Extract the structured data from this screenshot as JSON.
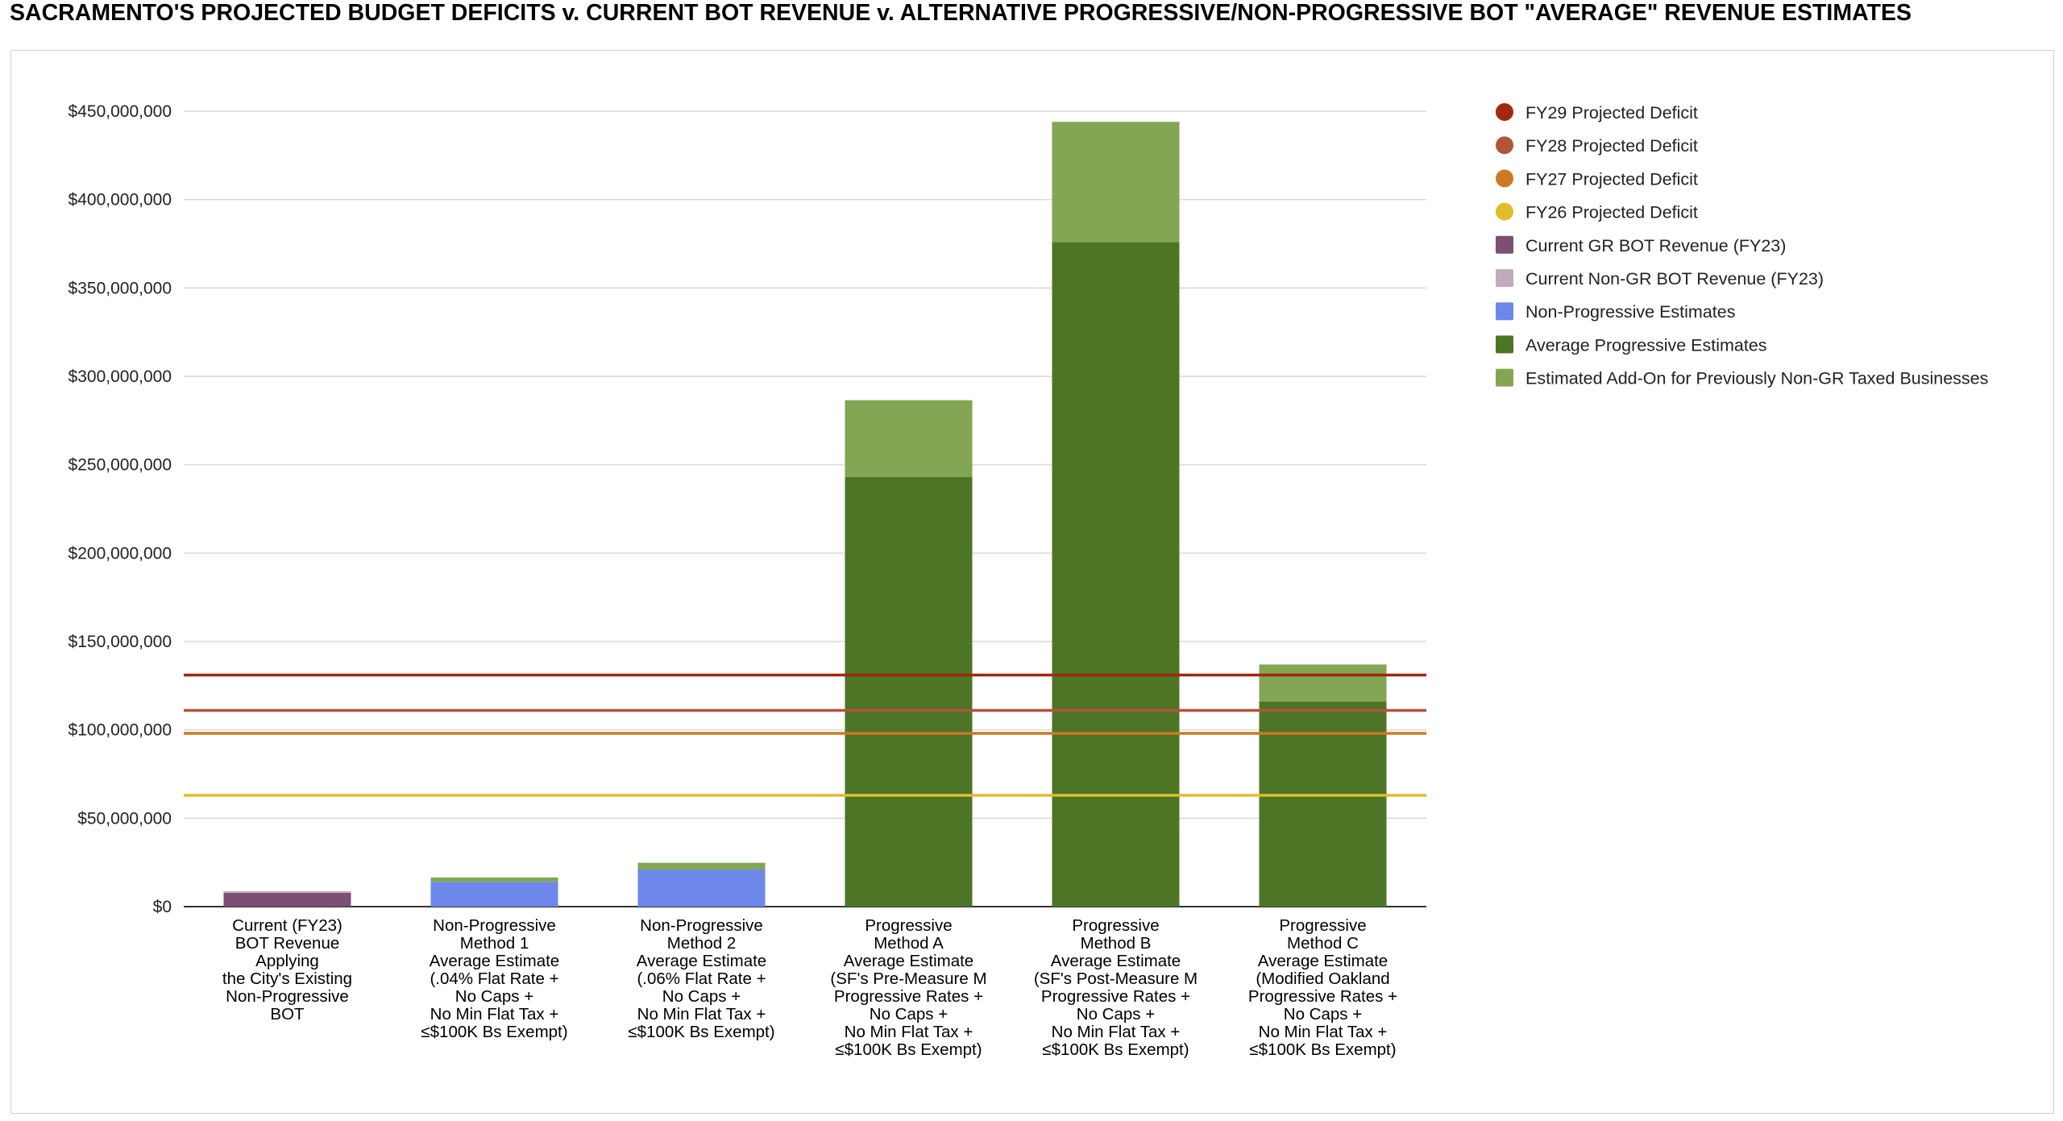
{
  "title": "SACRAMENTO'S PROJECTED BUDGET DEFICITS v. CURRENT BOT REVENUE v. ALTERNATIVE PROGRESSIVE/NON-PROGRESSIVE BOT \"AVERAGE\" REVENUE ESTIMATES",
  "chart_data": {
    "type": "bar",
    "stacked": true,
    "title": "SACRAMENTO'S PROJECTED BUDGET DEFICITS v. CURRENT BOT REVENUE v. ALTERNATIVE PROGRESSIVE/NON-PROGRESSIVE BOT \"AVERAGE\" REVENUE ESTIMATES",
    "xlabel": "",
    "ylabel": "",
    "ylim": [
      0,
      450000000
    ],
    "yticks": [
      0,
      50000000,
      100000000,
      150000000,
      200000000,
      250000000,
      300000000,
      350000000,
      400000000,
      450000000
    ],
    "ytick_labels": [
      "$0",
      "$50,000,000",
      "$100,000,000",
      "$150,000,000",
      "$200,000,000",
      "$250,000,000",
      "$300,000,000",
      "$350,000,000",
      "$400,000,000",
      "$450,000,000"
    ],
    "grid": true,
    "legend_position": "right",
    "categories": [
      [
        "Current (FY23)",
        "BOT Revenue",
        "Applying",
        "the City's Existing",
        "Non-Progressive",
        "BOT"
      ],
      [
        "Non-Progressive",
        "Method 1",
        "Average Estimate",
        "(.04% Flat Rate +",
        "No Caps +",
        "No Min Flat Tax +",
        "≤$100K Bs Exempt)"
      ],
      [
        "Non-Progressive",
        "Method 2",
        "Average Estimate",
        "(.06% Flat Rate +",
        "No Caps +",
        "No Min Flat Tax +",
        "≤$100K Bs Exempt)"
      ],
      [
        "Progressive",
        "Method A",
        "Average Estimate",
        "(SF's Pre-Measure M",
        "Progressive Rates +",
        "No Caps +",
        "No Min Flat Tax +",
        "≤$100K Bs Exempt)"
      ],
      [
        "Progressive",
        "Method B",
        "Average Estimate",
        "(SF's Post-Measure M",
        "Progressive Rates +",
        "No Caps +",
        "No Min Flat Tax +",
        "≤$100K Bs Exempt)"
      ],
      [
        "Progressive",
        "Method C",
        "Average Estimate",
        "(Modified Oakland",
        "Progressive Rates +",
        "No Caps +",
        "No Min Flat Tax +",
        "≤$100K Bs Exempt)"
      ]
    ],
    "series": [
      {
        "name": "FY29 Projected Deficit",
        "kind": "line",
        "value": 131000000,
        "color": "#a3260e"
      },
      {
        "name": "FY28 Projected Deficit",
        "kind": "line",
        "value": 111000000,
        "color": "#b35439"
      },
      {
        "name": "FY27 Projected Deficit",
        "kind": "line",
        "value": 98000000,
        "color": "#cf7824"
      },
      {
        "name": "FY26 Projected Deficit",
        "kind": "line",
        "value": 63000000,
        "color": "#dfbd2c"
      },
      {
        "name": "Current GR BOT Revenue (FY23)",
        "kind": "bar",
        "color": "#7d4f73",
        "values": [
          7800000,
          0,
          0,
          0,
          0,
          0
        ]
      },
      {
        "name": "Current Non-GR BOT Revenue (FY23)",
        "kind": "bar",
        "color": "#c3aabd",
        "values": [
          900000,
          0,
          0,
          0,
          0,
          0
        ]
      },
      {
        "name": "Non-Progressive Estimates",
        "kind": "bar",
        "color": "#6d87ea",
        "values": [
          0,
          14000000,
          21000000,
          0,
          0,
          0
        ]
      },
      {
        "name": "Average Progressive Estimates",
        "kind": "bar",
        "color": "#4d7526",
        "values": [
          0,
          0,
          0,
          243000000,
          376000000,
          116000000
        ]
      },
      {
        "name": "Estimated Add-On for Previously Non-GR Taxed Businesses",
        "kind": "bar",
        "color": "#82a653",
        "values": [
          0,
          2500000,
          3800000,
          43500000,
          68000000,
          21000000
        ]
      }
    ]
  }
}
